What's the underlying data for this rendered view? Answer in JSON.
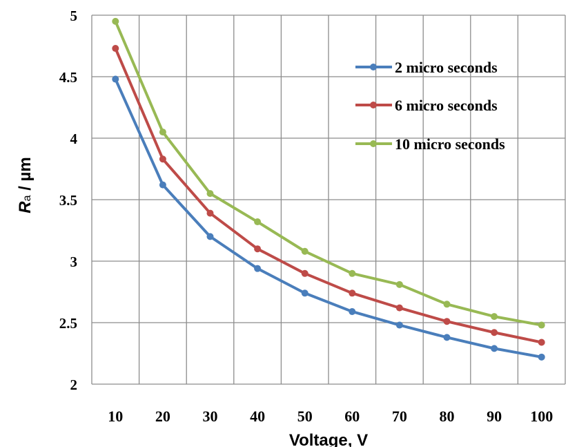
{
  "chart_data": {
    "type": "line",
    "xlabel": "Voltage, V",
    "ylabel": {
      "symbol": "R",
      "subscript": "a",
      "unit": " / µm"
    },
    "x": [
      10,
      20,
      30,
      40,
      50,
      60,
      70,
      80,
      90,
      100
    ],
    "x_tick_labels": [
      "10",
      "20",
      "30",
      "40",
      "50",
      "60",
      "70",
      "80",
      "90",
      "100"
    ],
    "y_tick_labels": [
      "2",
      "2.5",
      "3",
      "3.5",
      "4",
      "4.5",
      "5"
    ],
    "y_ticks": [
      2,
      2.5,
      3,
      3.5,
      4,
      4.5,
      5
    ],
    "ylim": [
      2,
      5
    ],
    "grid": true,
    "legend_position": "top-right",
    "series": [
      {
        "name": "2 micro seconds",
        "color": "#4a7ebb",
        "values": [
          4.48,
          3.62,
          3.2,
          2.94,
          2.74,
          2.59,
          2.48,
          2.38,
          2.29,
          2.22
        ]
      },
      {
        "name": "6 micro seconds",
        "color": "#be4b48",
        "values": [
          4.73,
          3.83,
          3.39,
          3.1,
          2.9,
          2.74,
          2.62,
          2.51,
          2.42,
          2.34
        ]
      },
      {
        "name": "10 micro seconds",
        "color": "#98b954",
        "values": [
          4.95,
          4.05,
          3.55,
          3.32,
          3.08,
          2.9,
          2.81,
          2.65,
          2.55,
          2.48
        ]
      }
    ]
  }
}
